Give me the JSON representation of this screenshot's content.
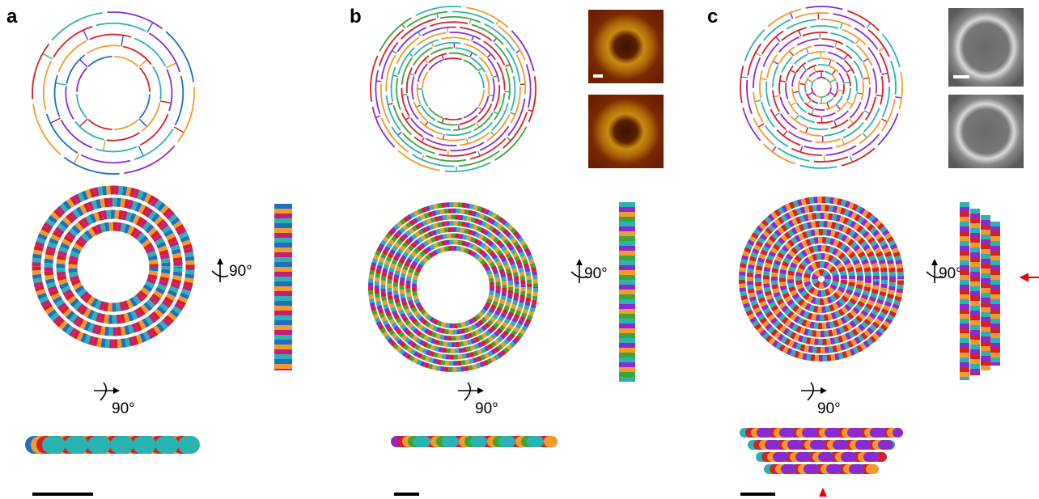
{
  "panels": [
    {
      "label": "a",
      "rotations": [
        "90°",
        "90°"
      ]
    },
    {
      "label": "b",
      "rotations": [
        "90°",
        "90°"
      ]
    },
    {
      "label": "c",
      "rotations": [
        "90°",
        "90°"
      ]
    }
  ]
}
